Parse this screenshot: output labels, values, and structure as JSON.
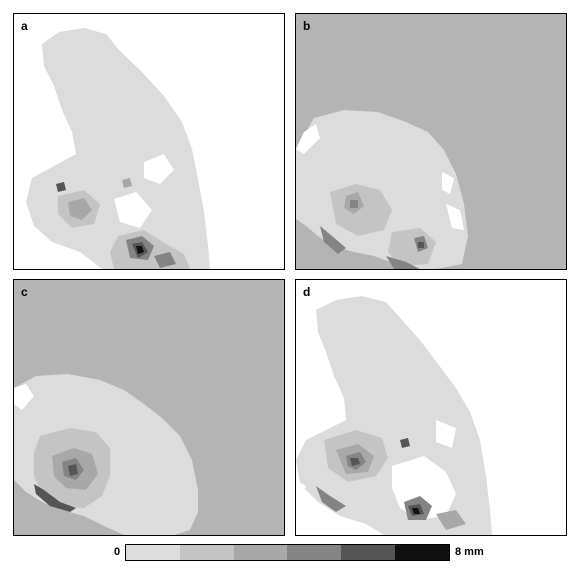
{
  "panels": [
    {
      "label": "a",
      "background": "#ffffff"
    },
    {
      "label": "b",
      "background": "#b4b4b4"
    },
    {
      "label": "c",
      "background": "#b4b4b4"
    },
    {
      "label": "d",
      "background": "#ffffff"
    }
  ],
  "colorbar": {
    "min_label": "0",
    "max_label": "8 mm",
    "colors": [
      "#dcdcdc",
      "#c4c4c4",
      "#a8a8a8",
      "#848484",
      "#555555",
      "#111111"
    ]
  }
}
